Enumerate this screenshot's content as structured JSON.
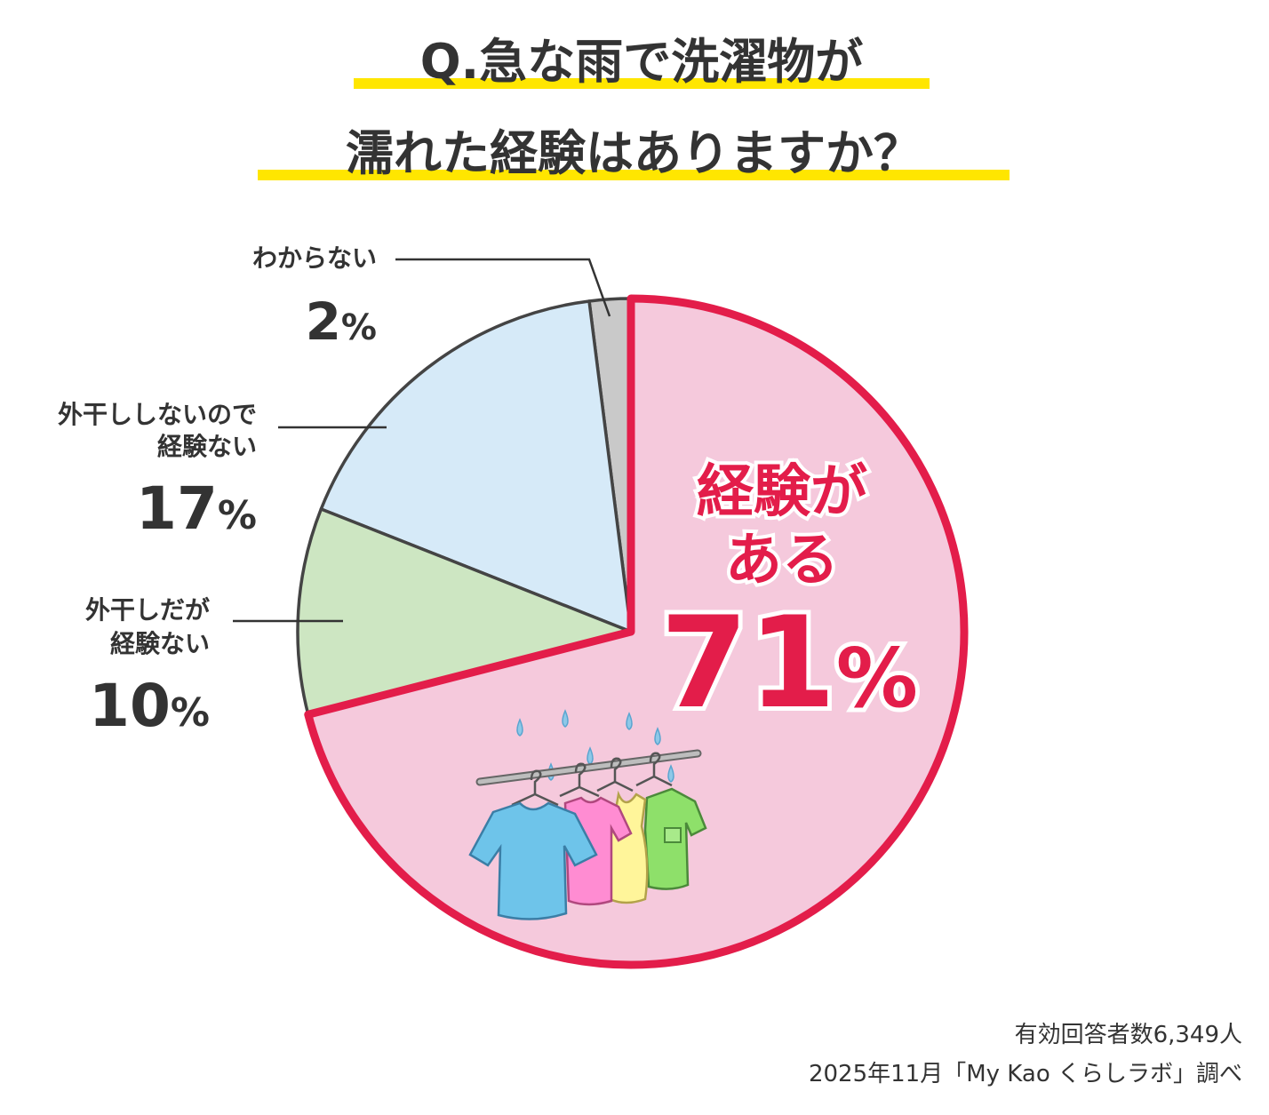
{
  "chart_data": {
    "type": "pie",
    "title_lines": [
      "Q.急な雨で洗濯物が",
      "濡れた経験はありますか？"
    ],
    "slices": [
      {
        "label_lines": [
          "経験が",
          "ある"
        ],
        "value": 71,
        "value_text": "71",
        "unit": "%",
        "color": "#f5c9dc",
        "highlight": true
      },
      {
        "label_lines": [
          "外干しだが",
          "経験ない"
        ],
        "value": 10,
        "value_text": "10",
        "unit": "%",
        "color": "#cde6c2"
      },
      {
        "label_lines": [
          "外干ししないので",
          "経験ない"
        ],
        "value": 17,
        "value_text": "17",
        "unit": "%",
        "color": "#d6eaf8"
      },
      {
        "label_lines": [
          "わからない"
        ],
        "value": 2,
        "value_text": "2",
        "unit": "%",
        "color": "#c9c9c9"
      }
    ],
    "footnotes": [
      "有効回答者数6,349人",
      "2025年11月「My Kao くらしラボ」調べ"
    ],
    "colors": {
      "highlight_stroke": "#e31d4a",
      "slice_stroke": "#444444",
      "title_underline": "#ffe600"
    }
  }
}
